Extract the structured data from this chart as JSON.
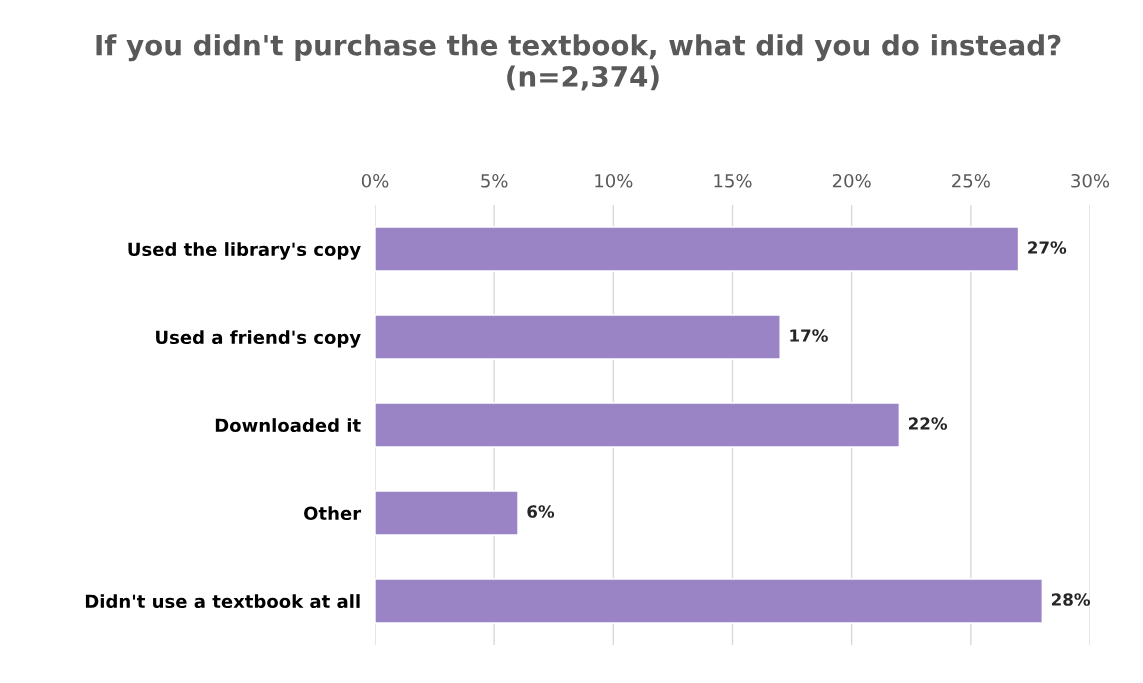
{
  "chart_data": {
    "type": "bar",
    "orientation": "horizontal",
    "title": "If you didn't purchase the textbook, what did you do instead?  (n=2,374)",
    "categories": [
      "Used the library's copy",
      "Used a friend's copy",
      "Downloaded it",
      "Other",
      "Didn't use a textbook at all"
    ],
    "values": [
      27,
      17,
      22,
      6,
      28
    ],
    "value_labels": [
      "27%",
      "17%",
      "22%",
      "6%",
      "28%"
    ],
    "color": "#9a84c6",
    "xlim": [
      0,
      30
    ],
    "xticks": [
      {
        "value": 0,
        "label": "0%"
      },
      {
        "value": 5,
        "label": "5%"
      },
      {
        "value": 10,
        "label": "10%"
      },
      {
        "value": 15,
        "label": "15%"
      },
      {
        "value": 20,
        "label": "20%"
      },
      {
        "value": 25,
        "label": "25%"
      },
      {
        "value": 30,
        "label": "30%"
      }
    ],
    "grid": "x",
    "legend": false
  }
}
